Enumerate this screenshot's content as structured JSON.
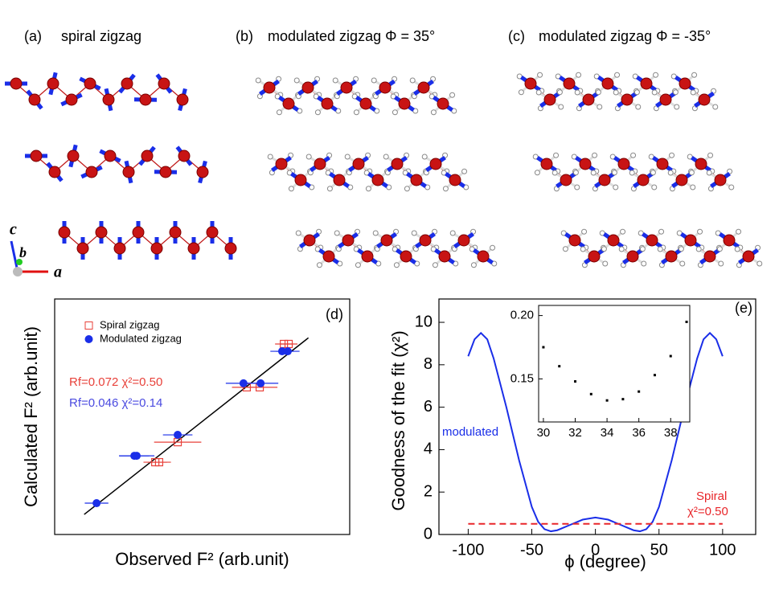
{
  "panels": [
    {
      "label": "(a)",
      "title": "spiral zigzag"
    },
    {
      "label": "(b)",
      "title": "modulated zigzag  Φ = 35°"
    },
    {
      "label": "(c)",
      "title": "modulated zigzag  Φ = -35°"
    }
  ],
  "axis_letters": [
    "c",
    "b",
    "a"
  ],
  "chart_data": [
    {
      "type": "scatter",
      "panel": "(d)",
      "xlabel": "Observed F² (arb.unit)",
      "ylabel": "Calculated F² (arb.unit)",
      "xlim": [
        0,
        10
      ],
      "ylim": [
        0,
        10
      ],
      "series": [
        {
          "name": "Spiral zigzag",
          "color": "#e8413a",
          "marker": "open-square",
          "x": [
            3.41,
            3.54,
            4.17,
            6.51,
            6.95,
            7.77,
            7.93
          ],
          "values": [
            3.07,
            3.07,
            3.92,
            6.25,
            6.25,
            8.09,
            8.09
          ],
          "xerr": [
            0.4,
            0.4,
            0.8,
            0.5,
            0.6,
            0.3,
            0.3
          ]
        },
        {
          "name": "Modulated zigzag",
          "color": "#1a2ee8",
          "marker": "filled-circle",
          "x": [
            1.42,
            2.7,
            2.78,
            4.17,
            6.4,
            6.98,
            7.71,
            7.9
          ],
          "values": [
            1.33,
            3.34,
            3.34,
            4.23,
            6.42,
            6.42,
            7.78,
            7.78
          ],
          "xerr": [
            0.4,
            0.5,
            0.6,
            0.5,
            0.6,
            0.6,
            0.4,
            0.4
          ]
        }
      ],
      "fit_line": {
        "color": "#000000",
        "x": [
          1.0,
          8.6
        ],
        "values": [
          0.85,
          8.35
        ]
      },
      "annotations": [
        {
          "text": "Rf=0.072 χ²=0.50",
          "color": "#e8413a"
        },
        {
          "text": "Rf=0.046  χ²=0.14",
          "color": "#4a4ae0"
        }
      ]
    },
    {
      "type": "line",
      "panel": "(e)",
      "xlabel": "ϕ (degree)",
      "ylabel": "Goodness of the fit (χ²)",
      "xlim": [
        -123,
        126
      ],
      "ylim": [
        0,
        11.1
      ],
      "xticks": [
        -100,
        -50,
        0,
        50,
        100
      ],
      "yticks": [
        0,
        2,
        4,
        6,
        8,
        10
      ],
      "series": [
        {
          "name": "modulated",
          "color": "#1a2ee8",
          "dash": false,
          "x": [
            -100,
            -95,
            -90,
            -85,
            -80,
            -70,
            -60,
            -50,
            -45,
            -40,
            -35,
            -30,
            -20,
            -10,
            0,
            10,
            20,
            30,
            35,
            40,
            45,
            50,
            60,
            70,
            80,
            85,
            90,
            95,
            100
          ],
          "values": [
            8.4,
            9.2,
            9.5,
            9.2,
            8.3,
            6.0,
            3.5,
            1.3,
            0.6,
            0.25,
            0.15,
            0.2,
            0.45,
            0.7,
            0.8,
            0.7,
            0.45,
            0.2,
            0.15,
            0.25,
            0.6,
            1.3,
            3.5,
            6.0,
            8.3,
            9.2,
            9.5,
            9.2,
            8.4
          ]
        },
        {
          "name": "Spiral",
          "color": "#e8262a",
          "dash": true,
          "x": [
            -100,
            100
          ],
          "values": [
            0.5,
            0.5
          ]
        }
      ],
      "annotations": [
        {
          "text": "χ²=0.50",
          "color": "#e8262a"
        }
      ]
    },
    {
      "type": "scatter",
      "xlim": [
        29.7,
        39.2
      ],
      "ylim": [
        0.116,
        0.208
      ],
      "xticks": [
        30,
        32,
        34,
        36,
        38
      ],
      "yticks": [
        {
          "value": 0.15,
          "label": "0.15"
        },
        {
          "value": 0.2,
          "label": "0.20"
        }
      ],
      "color": "#000000",
      "x": [
        30,
        31,
        32,
        33,
        34,
        35,
        36,
        37,
        38,
        39
      ],
      "values": [
        0.175,
        0.16,
        0.148,
        0.138,
        0.133,
        0.134,
        0.14,
        0.153,
        0.168,
        0.195
      ]
    }
  ]
}
